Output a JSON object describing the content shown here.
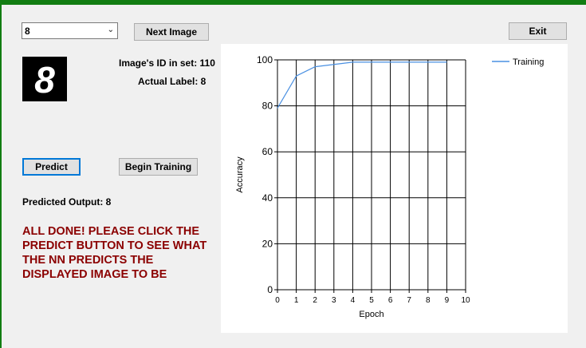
{
  "image_selector": {
    "value": "8"
  },
  "buttons": {
    "next_image": "Next Image",
    "exit": "Exit",
    "predict": "Predict",
    "begin_training": "Begin Training"
  },
  "image_info": {
    "id_label": "Image's ID in set: 110",
    "actual_label": "Actual Label: 8",
    "digit_shown": "8"
  },
  "prediction": {
    "label": "Predicted Output: 8"
  },
  "status_message": "ALL DONE! PLEASE CLICK THE PREDICT BUTTON TO SEE WHAT THE NN PREDICTS THE DISPLAYED IMAGE TO BE",
  "chart_data": {
    "type": "line",
    "xlabel": "Epoch",
    "ylabel": "Accuracy",
    "xlim": [
      0,
      10
    ],
    "ylim": [
      0,
      100
    ],
    "xticks": [
      "0",
      "1",
      "2",
      "3",
      "4",
      "5",
      "6",
      "7",
      "8",
      "9",
      "10"
    ],
    "yticks": [
      "0",
      "20",
      "40",
      "60",
      "80",
      "100"
    ],
    "grid": true,
    "legend_position": "top-right",
    "series": [
      {
        "name": "Training",
        "color": "#4a90e2",
        "x": [
          0,
          1,
          2,
          3,
          4,
          5,
          6,
          7,
          8,
          9
        ],
        "y": [
          79,
          93,
          97,
          98,
          99,
          99,
          99,
          99,
          99,
          99
        ]
      }
    ]
  },
  "colors": {
    "frame": "#127d12",
    "message": "#8b0000",
    "default_button_border": "#0078d7"
  }
}
